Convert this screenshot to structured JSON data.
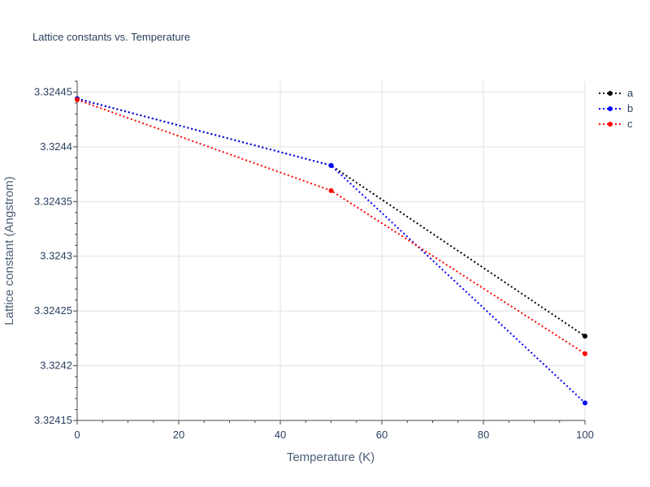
{
  "chart_data": {
    "type": "line",
    "title": "Lattice constants vs. Temperature",
    "xlabel": "Temperature (K)",
    "ylabel": "Lattice constant (Angstrom)",
    "x": [
      0,
      50,
      100
    ],
    "xlim": [
      0,
      100
    ],
    "ylim": [
      3.32415,
      3.32446
    ],
    "x_ticks": [
      0,
      20,
      40,
      60,
      80,
      100
    ],
    "y_ticks": [
      3.32415,
      3.3242,
      3.32425,
      3.3243,
      3.32435,
      3.3244,
      3.32445
    ],
    "x_tick_labels": [
      "0",
      "20",
      "40",
      "60",
      "80",
      "100"
    ],
    "y_tick_labels": [
      "3.32415",
      "3.3242",
      "3.32425",
      "3.3243",
      "3.32435",
      "3.3244",
      "3.32445"
    ],
    "grid": true,
    "legend_position": "top-right",
    "line_style": "dotted",
    "series": [
      {
        "name": "a",
        "color": "#000000",
        "values": [
          3.324444,
          3.324383,
          3.324227
        ]
      },
      {
        "name": "b",
        "color": "#0000ff",
        "values": [
          3.324444,
          3.324383,
          3.324166
        ]
      },
      {
        "name": "c",
        "color": "#ff0000",
        "values": [
          3.324443,
          3.32436,
          3.324211
        ]
      }
    ]
  }
}
